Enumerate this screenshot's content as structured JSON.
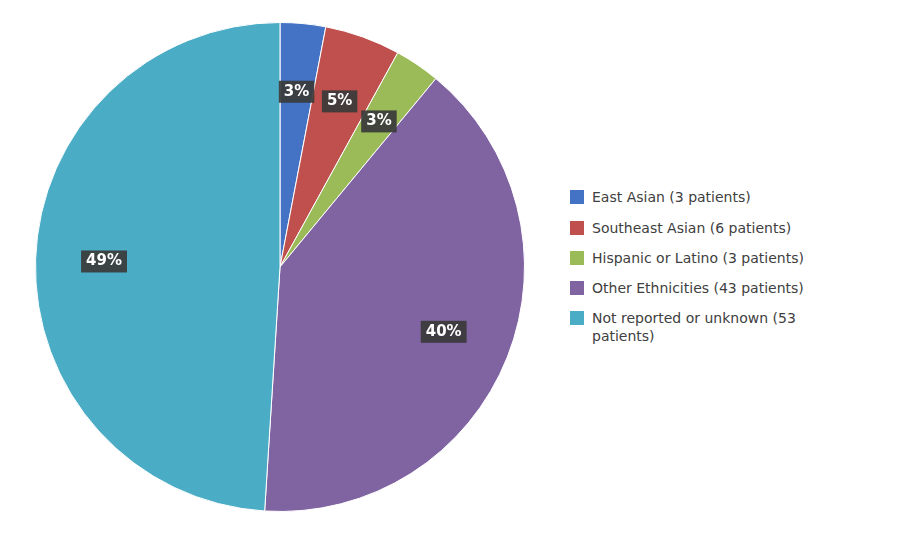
{
  "chart_data": {
    "type": "pie",
    "categories": [
      "East Asian (3 patients)",
      "Southeast Asian (6 patients)",
      "Hispanic or Latino (3 patients)",
      "Other Ethnicities (43 patients)",
      "Not reported or unknown (53\n  patients)"
    ],
    "values": [
      3,
      5,
      3,
      40,
      49
    ],
    "value_labels": [
      "3%",
      "5%",
      "3%",
      "40%",
      "49%"
    ],
    "colors": [
      "#4472C4",
      "#C0504D",
      "#9BBB59",
      "#8064A2",
      "#4BACC6"
    ],
    "data_labels": true,
    "legend": "right"
  }
}
